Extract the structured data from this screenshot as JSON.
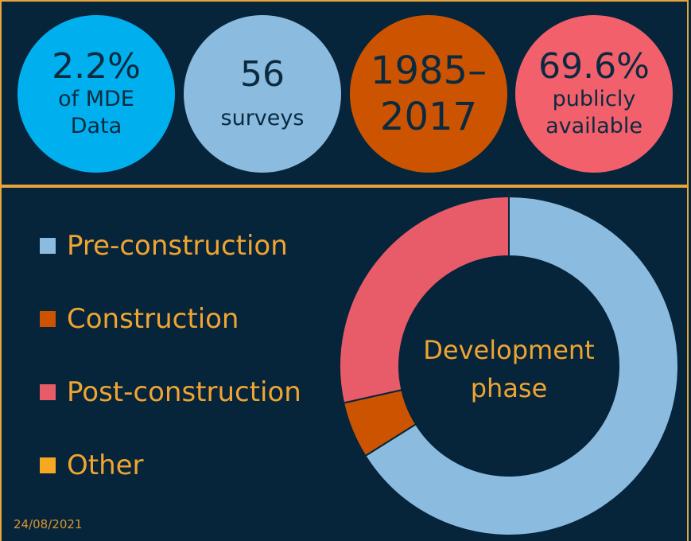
{
  "stats": [
    {
      "value": "2.2%",
      "line1": "of MDE",
      "line2": "Data",
      "color": "#00b0ee"
    },
    {
      "value": "56",
      "line1": "surveys",
      "color": "#8bbbdf"
    },
    {
      "value_line1": "1985–",
      "value_line2": "2017",
      "color": "#cc5400"
    },
    {
      "value": "69.6%",
      "line1": "publicly",
      "line2": "available",
      "color": "#f2606c"
    }
  ],
  "chart_data": {
    "type": "pie",
    "style": "donut",
    "center_label_line1": "Development",
    "center_label_line2": "phase",
    "legend_position": "left",
    "slices": [
      {
        "label": "Pre-construction",
        "value": 66.1,
        "color": "#8bbbdf"
      },
      {
        "label": "Construction",
        "value": 5.4,
        "color": "#cc5400"
      },
      {
        "label": "Post-construction",
        "value": 28.5,
        "color": "#e85c6a"
      },
      {
        "label": "Other",
        "value": 0,
        "color": "#f7a823"
      }
    ]
  },
  "footer": {
    "date": "24/08/2021"
  }
}
